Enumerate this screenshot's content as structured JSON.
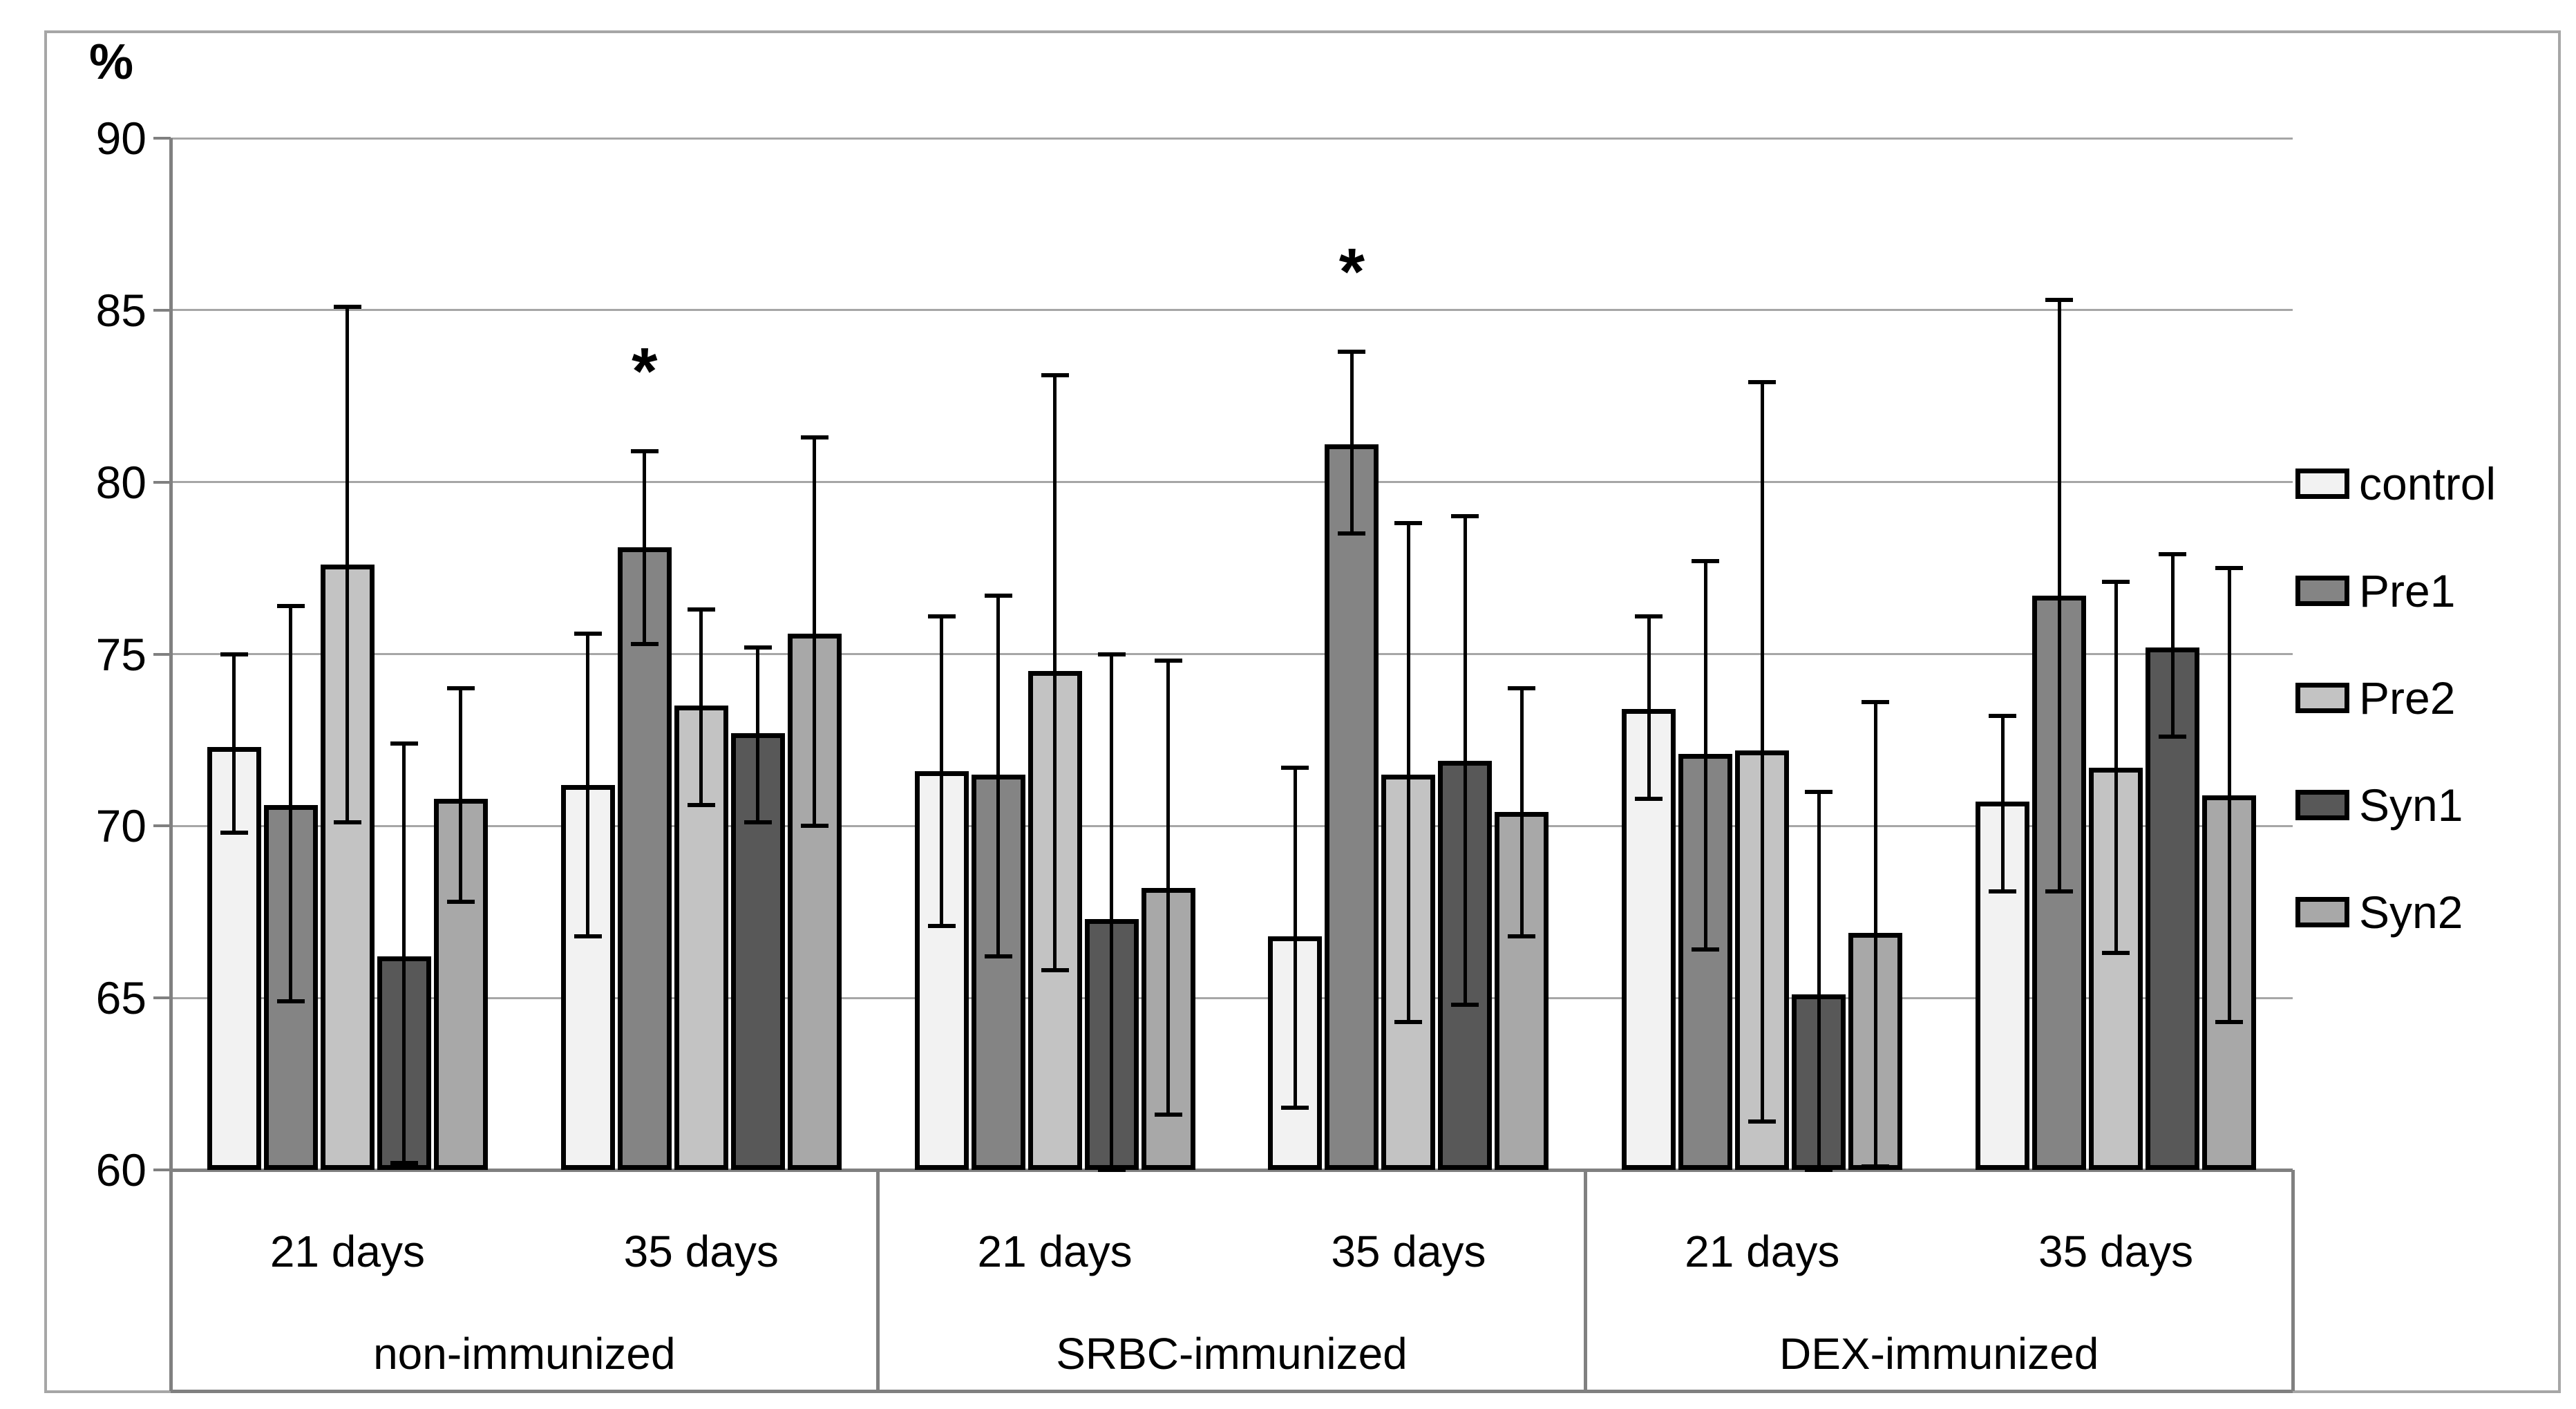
{
  "chart_data": {
    "type": "bar",
    "title": "",
    "ylabel": "%",
    "ylim": [
      60,
      90
    ],
    "yticks": [
      90,
      85,
      80,
      75,
      70,
      65,
      60
    ],
    "grid": true,
    "legend_position": "right",
    "significance_marker": "*",
    "series": [
      {
        "name": "control",
        "color": "#f2f2f2"
      },
      {
        "name": "Pre1",
        "color": "#848484"
      },
      {
        "name": "Pre2",
        "color": "#c3c3c3"
      },
      {
        "name": "Syn1",
        "color": "#585858"
      },
      {
        "name": "Syn2",
        "color": "#a8a8a8"
      }
    ],
    "top_categories": [
      "non-immunized",
      "SRBC-immunized",
      "DEX-immunized"
    ],
    "groups": [
      {
        "immunization": "non-immunized",
        "time": "21 days",
        "bars": [
          {
            "series": "control",
            "mean": 72.3,
            "err_low": 69.8,
            "err_high": 75.0,
            "sig": false
          },
          {
            "series": "Pre1",
            "mean": 70.6,
            "err_low": 64.9,
            "err_high": 76.4,
            "sig": false
          },
          {
            "series": "Pre2",
            "mean": 77.6,
            "err_low": 70.1,
            "err_high": 85.1,
            "sig": false
          },
          {
            "series": "Syn1",
            "mean": 66.2,
            "err_low": 60.2,
            "err_high": 72.4,
            "sig": false
          },
          {
            "series": "Syn2",
            "mean": 70.8,
            "err_low": 67.8,
            "err_high": 74.0,
            "sig": false
          }
        ]
      },
      {
        "immunization": "non-immunized",
        "time": "35 days",
        "bars": [
          {
            "series": "control",
            "mean": 71.2,
            "err_low": 66.8,
            "err_high": 75.6,
            "sig": false
          },
          {
            "series": "Pre1",
            "mean": 78.1,
            "err_low": 75.3,
            "err_high": 80.9,
            "sig": true
          },
          {
            "series": "Pre2",
            "mean": 73.5,
            "err_low": 70.6,
            "err_high": 76.3,
            "sig": false
          },
          {
            "series": "Syn1",
            "mean": 72.7,
            "err_low": 70.1,
            "err_high": 75.2,
            "sig": false
          },
          {
            "series": "Syn2",
            "mean": 75.6,
            "err_low": 70.0,
            "err_high": 81.3,
            "sig": false
          }
        ]
      },
      {
        "immunization": "SRBC-immunized",
        "time": "21 days",
        "bars": [
          {
            "series": "control",
            "mean": 71.6,
            "err_low": 67.1,
            "err_high": 76.1,
            "sig": false
          },
          {
            "series": "Pre1",
            "mean": 71.5,
            "err_low": 66.2,
            "err_high": 76.7,
            "sig": false
          },
          {
            "series": "Pre2",
            "mean": 74.5,
            "err_low": 65.8,
            "err_high": 83.1,
            "sig": false
          },
          {
            "series": "Syn1",
            "mean": 67.3,
            "err_low": 60.0,
            "err_high": 75.0,
            "sig": false
          },
          {
            "series": "Syn2",
            "mean": 68.2,
            "err_low": 61.6,
            "err_high": 74.8,
            "sig": false
          }
        ]
      },
      {
        "immunization": "SRBC-immunized",
        "time": "35 days",
        "bars": [
          {
            "series": "control",
            "mean": 66.8,
            "err_low": 61.8,
            "err_high": 71.7,
            "sig": false
          },
          {
            "series": "Pre1",
            "mean": 81.1,
            "err_low": 78.5,
            "err_high": 83.8,
            "sig": true
          },
          {
            "series": "Pre2",
            "mean": 71.5,
            "err_low": 64.3,
            "err_high": 78.8,
            "sig": false
          },
          {
            "series": "Syn1",
            "mean": 71.9,
            "err_low": 64.8,
            "err_high": 79.0,
            "sig": false
          },
          {
            "series": "Syn2",
            "mean": 70.4,
            "err_low": 66.8,
            "err_high": 74.0,
            "sig": false
          }
        ]
      },
      {
        "immunization": "DEX-immunized",
        "time": "21 days",
        "bars": [
          {
            "series": "control",
            "mean": 73.4,
            "err_low": 70.8,
            "err_high": 76.1,
            "sig": false
          },
          {
            "series": "Pre1",
            "mean": 72.1,
            "err_low": 66.4,
            "err_high": 77.7,
            "sig": false
          },
          {
            "series": "Pre2",
            "mean": 72.2,
            "err_low": 61.4,
            "err_high": 82.9,
            "sig": false
          },
          {
            "series": "Syn1",
            "mean": 65.1,
            "err_low": 60.0,
            "err_high": 71.0,
            "sig": false
          },
          {
            "series": "Syn2",
            "mean": 66.9,
            "err_low": 60.1,
            "err_high": 73.6,
            "sig": false
          }
        ]
      },
      {
        "immunization": "DEX-immunized",
        "time": "35 days",
        "bars": [
          {
            "series": "control",
            "mean": 70.7,
            "err_low": 68.1,
            "err_high": 73.2,
            "sig": false
          },
          {
            "series": "Pre1",
            "mean": 76.7,
            "err_low": 68.1,
            "err_high": 85.3,
            "sig": false
          },
          {
            "series": "Pre2",
            "mean": 71.7,
            "err_low": 66.3,
            "err_high": 77.1,
            "sig": false
          },
          {
            "series": "Syn1",
            "mean": 75.2,
            "err_low": 72.6,
            "err_high": 77.9,
            "sig": false
          },
          {
            "series": "Syn2",
            "mean": 70.9,
            "err_low": 64.3,
            "err_high": 77.5,
            "sig": false
          }
        ]
      }
    ]
  },
  "styles": {
    "bar_border": "#000000",
    "error_bar": "#000000",
    "gridline": "#a6a6a6",
    "axis": "#808080",
    "frame_border": "#a6a6a6",
    "text": "#000000",
    "background": "#ffffff"
  }
}
